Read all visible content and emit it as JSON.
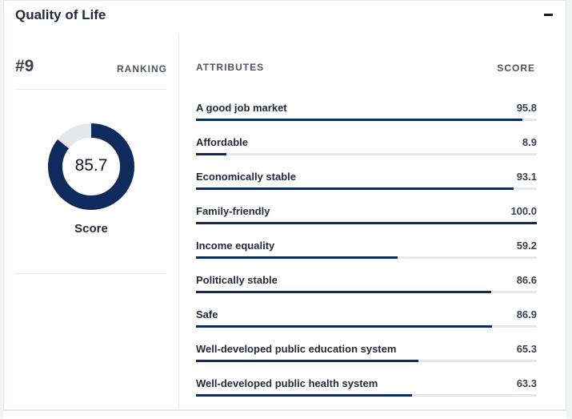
{
  "header": {
    "title": "Quality of Life",
    "collapse_icon": "minus-icon"
  },
  "ranking": {
    "value": "#9",
    "label": "RANKING"
  },
  "overall": {
    "score": "85.7",
    "score_value": 85.7,
    "max": 100,
    "caption": "Score"
  },
  "table": {
    "attributes_header": "ATTRIBUTES",
    "score_header": "SCORE"
  },
  "attributes": [
    {
      "name": "A good job market",
      "score": "95.8",
      "value": 95.8
    },
    {
      "name": "Affordable",
      "score": "8.9",
      "value": 8.9
    },
    {
      "name": "Economically stable",
      "score": "93.1",
      "value": 93.1
    },
    {
      "name": "Family-friendly",
      "score": "100.0",
      "value": 100.0
    },
    {
      "name": "Income equality",
      "score": "59.2",
      "value": 59.2
    },
    {
      "name": "Politically stable",
      "score": "86.6",
      "value": 86.6
    },
    {
      "name": "Safe",
      "score": "86.9",
      "value": 86.9
    },
    {
      "name": "Well-developed public education system",
      "score": "65.3",
      "value": 65.3
    },
    {
      "name": "Well-developed public health system",
      "score": "63.3",
      "value": 63.3
    }
  ],
  "colors": {
    "accent": "#0f2a5c",
    "track": "#e5e7eb",
    "donut_track": "#e5e7eb"
  }
}
